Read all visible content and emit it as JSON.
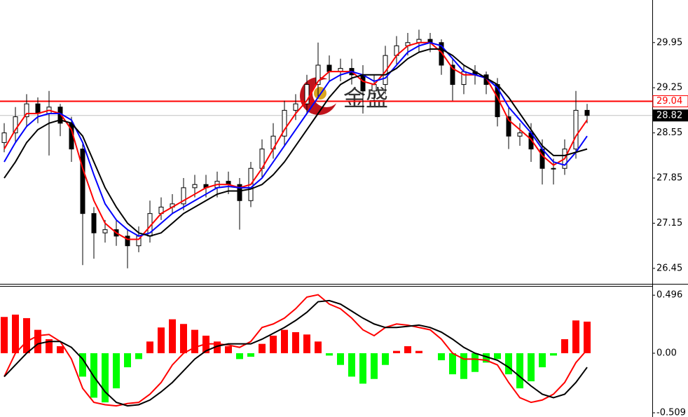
{
  "chart_data": [
    {
      "type": "candlestick",
      "candle_color": "#000000",
      "open": [
        28.4,
        28.55,
        28.8,
        29.0,
        28.85,
        28.95,
        28.7,
        28.3,
        27.3,
        27.0,
        27.05,
        26.95,
        26.8,
        26.95,
        27.3,
        27.4,
        27.45,
        27.7,
        27.75,
        27.7,
        27.8,
        27.75,
        27.5,
        28.0,
        28.3,
        28.5,
        28.9,
        29.0,
        29.3,
        29.6,
        29.5,
        29.55,
        29.45,
        29.2,
        29.3,
        29.75,
        29.9,
        29.95,
        30.0,
        29.95,
        29.6,
        29.3,
        29.5,
        29.45,
        29.3,
        28.8,
        28.5,
        28.55,
        28.3,
        28.0,
        28.0,
        28.3,
        28.9
      ],
      "high": [
        28.7,
        28.95,
        29.15,
        29.1,
        29.2,
        29.0,
        28.8,
        28.4,
        27.4,
        27.2,
        27.2,
        27.05,
        27.1,
        27.5,
        27.55,
        27.6,
        27.85,
        27.9,
        27.9,
        27.95,
        27.95,
        27.85,
        28.1,
        28.45,
        28.7,
        29.05,
        29.15,
        29.45,
        29.95,
        29.75,
        29.7,
        29.7,
        29.6,
        29.45,
        29.9,
        30.05,
        30.1,
        30.15,
        30.1,
        30.0,
        29.7,
        29.6,
        29.6,
        29.5,
        29.4,
        28.95,
        28.7,
        28.7,
        28.45,
        28.15,
        28.45,
        29.2,
        29.0
      ],
      "low": [
        28.25,
        28.4,
        28.65,
        28.7,
        28.2,
        28.5,
        28.1,
        26.5,
        26.6,
        26.85,
        26.8,
        26.45,
        26.7,
        26.85,
        27.2,
        27.3,
        27.35,
        27.55,
        27.55,
        27.55,
        27.6,
        27.05,
        27.4,
        27.85,
        28.15,
        28.35,
        28.75,
        28.85,
        29.1,
        29.35,
        29.35,
        29.3,
        28.85,
        29.05,
        29.15,
        29.6,
        29.75,
        29.8,
        29.8,
        29.45,
        29.05,
        29.15,
        29.3,
        29.15,
        28.65,
        28.3,
        28.35,
        28.1,
        27.75,
        27.75,
        27.9,
        28.15,
        28.7
      ],
      "close": [
        28.55,
        28.8,
        29.0,
        28.85,
        28.95,
        28.7,
        28.3,
        27.3,
        27.0,
        27.05,
        26.95,
        26.8,
        26.95,
        27.3,
        27.4,
        27.45,
        27.7,
        27.75,
        27.7,
        27.8,
        27.75,
        27.5,
        28.0,
        28.3,
        28.5,
        28.9,
        29.0,
        29.3,
        29.6,
        29.5,
        29.55,
        29.45,
        29.2,
        29.3,
        29.75,
        29.9,
        29.95,
        30.0,
        29.95,
        29.6,
        29.3,
        29.5,
        29.45,
        29.3,
        28.8,
        28.5,
        28.55,
        28.3,
        28.0,
        28.0,
        28.3,
        28.9,
        28.82
      ],
      "series": [
        {
          "color": "#ff0000",
          "values": [
            28.3,
            28.6,
            28.85,
            28.85,
            28.9,
            28.85,
            28.6,
            28.0,
            27.5,
            27.15,
            27.0,
            26.9,
            26.9,
            27.1,
            27.3,
            27.4,
            27.5,
            27.6,
            27.7,
            27.75,
            27.75,
            27.7,
            27.75,
            28.0,
            28.3,
            28.6,
            28.85,
            29.05,
            29.35,
            29.5,
            29.5,
            29.5,
            29.35,
            29.3,
            29.5,
            29.75,
            29.9,
            29.95,
            29.95,
            29.8,
            29.55,
            29.45,
            29.45,
            29.4,
            29.1,
            28.75,
            28.6,
            28.45,
            28.2,
            28.05,
            28.15,
            28.5,
            28.75
          ]
        },
        {
          "color": "#0000ff",
          "values": [
            28.1,
            28.4,
            28.65,
            28.8,
            28.85,
            28.85,
            28.75,
            28.4,
            27.9,
            27.45,
            27.2,
            27.05,
            26.95,
            27.0,
            27.15,
            27.3,
            27.4,
            27.5,
            27.6,
            27.7,
            27.72,
            27.7,
            27.7,
            27.85,
            28.1,
            28.35,
            28.6,
            28.85,
            29.1,
            29.35,
            29.45,
            29.5,
            29.45,
            29.35,
            29.4,
            29.6,
            29.8,
            29.9,
            29.95,
            29.9,
            29.7,
            29.5,
            29.45,
            29.4,
            29.25,
            28.95,
            28.75,
            28.55,
            28.3,
            28.1,
            28.05,
            28.25,
            28.5
          ]
        },
        {
          "color": "#000000",
          "values": [
            27.85,
            28.1,
            28.4,
            28.6,
            28.7,
            28.75,
            28.7,
            28.5,
            28.1,
            27.7,
            27.4,
            27.15,
            27.0,
            26.95,
            27.0,
            27.15,
            27.3,
            27.4,
            27.5,
            27.6,
            27.65,
            27.65,
            27.68,
            27.75,
            27.9,
            28.1,
            28.35,
            28.6,
            28.85,
            29.1,
            29.3,
            29.4,
            29.45,
            29.45,
            29.45,
            29.55,
            29.7,
            29.8,
            29.85,
            29.85,
            29.75,
            29.6,
            29.5,
            29.4,
            29.3,
            29.1,
            28.85,
            28.6,
            28.35,
            28.2,
            28.2,
            28.25,
            28.3
          ]
        }
      ],
      "levels": [
        {
          "value": 29.04,
          "color": "#ff0000"
        },
        {
          "value": 28.82,
          "color": "#000000"
        }
      ],
      "ylim": [
        26.21,
        30.61
      ],
      "yticks": [
        29.95,
        29.25,
        28.55,
        27.85,
        27.15,
        26.45
      ],
      "watermark": "金盛"
    },
    {
      "type": "macd",
      "pos_color": "#ff0000",
      "neg_color": "#00ff00",
      "values": [
        0.31,
        0.33,
        0.3,
        0.2,
        0.12,
        0.06,
        0.0,
        -0.2,
        -0.38,
        -0.42,
        -0.3,
        -0.12,
        -0.05,
        0.1,
        0.22,
        0.29,
        0.25,
        0.2,
        0.15,
        0.1,
        0.06,
        -0.05,
        -0.03,
        0.08,
        0.15,
        0.2,
        0.18,
        0.16,
        0.1,
        -0.02,
        -0.1,
        -0.2,
        -0.26,
        -0.22,
        -0.1,
        0.02,
        0.06,
        0.02,
        0.0,
        -0.06,
        -0.18,
        -0.22,
        -0.16,
        -0.08,
        -0.05,
        -0.18,
        -0.3,
        -0.24,
        -0.12,
        -0.02,
        0.12,
        0.28,
        0.27
      ],
      "series": [
        {
          "color": "#ff0000",
          "values": [
            -0.2,
            0.0,
            0.1,
            0.15,
            0.16,
            0.1,
            -0.05,
            -0.3,
            -0.42,
            -0.44,
            -0.45,
            -0.43,
            -0.42,
            -0.35,
            -0.25,
            -0.1,
            0.0,
            0.05,
            0.08,
            0.08,
            0.07,
            0.05,
            0.1,
            0.22,
            0.25,
            0.3,
            0.38,
            0.48,
            0.5,
            0.42,
            0.38,
            0.3,
            0.2,
            0.15,
            0.22,
            0.25,
            0.24,
            0.22,
            0.2,
            0.12,
            0.0,
            -0.05,
            -0.05,
            -0.06,
            -0.1,
            -0.25,
            -0.38,
            -0.42,
            -0.4,
            -0.35,
            -0.25,
            -0.08,
            0.03
          ]
        },
        {
          "color": "#000000",
          "values": [
            -0.2,
            -0.1,
            0.0,
            0.08,
            0.1,
            0.1,
            0.05,
            -0.05,
            -0.2,
            -0.33,
            -0.42,
            -0.45,
            -0.44,
            -0.4,
            -0.33,
            -0.25,
            -0.15,
            -0.05,
            0.02,
            0.06,
            0.08,
            0.08,
            0.08,
            0.12,
            0.17,
            0.22,
            0.28,
            0.35,
            0.44,
            0.45,
            0.42,
            0.36,
            0.3,
            0.25,
            0.22,
            0.22,
            0.23,
            0.24,
            0.22,
            0.18,
            0.12,
            0.05,
            0.0,
            -0.03,
            -0.06,
            -0.12,
            -0.2,
            -0.28,
            -0.35,
            -0.38,
            -0.35,
            -0.25,
            -0.12
          ]
        }
      ],
      "ylim": [
        -0.545,
        0.575
      ],
      "yticks": [
        0.496,
        {
          "value": 0,
          "label": "0.00"
        },
        -0.509
      ]
    }
  ]
}
